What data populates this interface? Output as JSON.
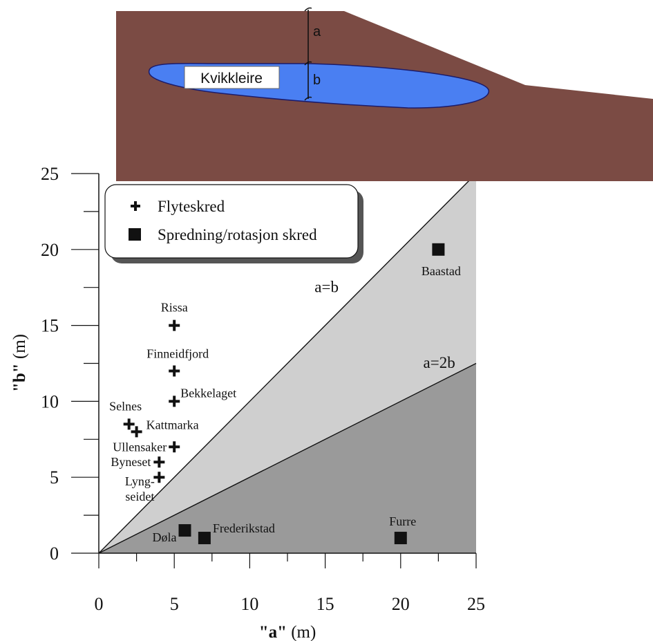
{
  "diagram": {
    "soil_color": "#7b4b44",
    "clay_color": "#4a7ff2",
    "clay_label": "Kvikkleire",
    "dim_a_label": "a",
    "dim_b_label": "b"
  },
  "chart_data": {
    "type": "scatter",
    "xlabel_quoted": "\"a\"",
    "xlabel_unit": " (m)",
    "ylabel_quoted": "\"b\"",
    "ylabel_unit": " (m)",
    "xlim": [
      0,
      25
    ],
    "ylim": [
      0,
      25
    ],
    "x_ticks": [
      0,
      5,
      10,
      15,
      20,
      25
    ],
    "y_ticks": [
      0,
      5,
      10,
      15,
      20,
      25
    ],
    "grid": false,
    "legend_position": "top-left",
    "regions": [
      {
        "bounded_by": "a=b",
        "color": "#cfcfcf"
      },
      {
        "bounded_by": "a=2b",
        "color": "#9a9a9a"
      }
    ],
    "lines": [
      {
        "label": "a=b",
        "slope": 1,
        "label_x": 14.3,
        "label_y": 17.2
      },
      {
        "label": "a=2b",
        "slope": 0.5,
        "label_x": 21.5,
        "label_y": 12.2
      }
    ],
    "series": [
      {
        "name": "Flyteskred",
        "marker": "cross",
        "points": [
          {
            "label": "Rissa",
            "x": 5,
            "y": 15
          },
          {
            "label": "Finneidfjord",
            "x": 5,
            "y": 12
          },
          {
            "label": "Bekkelaget",
            "x": 5,
            "y": 10
          },
          {
            "label": "Selnes",
            "x": 2,
            "y": 8.5
          },
          {
            "label": "Kattmarka",
            "x": 2.5,
            "y": 8
          },
          {
            "label": "Ullensaker",
            "x": 5,
            "y": 7
          },
          {
            "label": "Byneset",
            "x": 4,
            "y": 6
          },
          {
            "label": "Lyng-\nseidet",
            "x": 4,
            "y": 5
          }
        ]
      },
      {
        "name": "Spredning/rotasjon skred",
        "marker": "square",
        "points": [
          {
            "label": "Baastad",
            "x": 22.5,
            "y": 20
          },
          {
            "label": "Døla",
            "x": 5.7,
            "y": 1.5
          },
          {
            "label": "Frederikstad",
            "x": 7,
            "y": 1
          },
          {
            "label": "Furre",
            "x": 20,
            "y": 1
          }
        ]
      }
    ]
  }
}
